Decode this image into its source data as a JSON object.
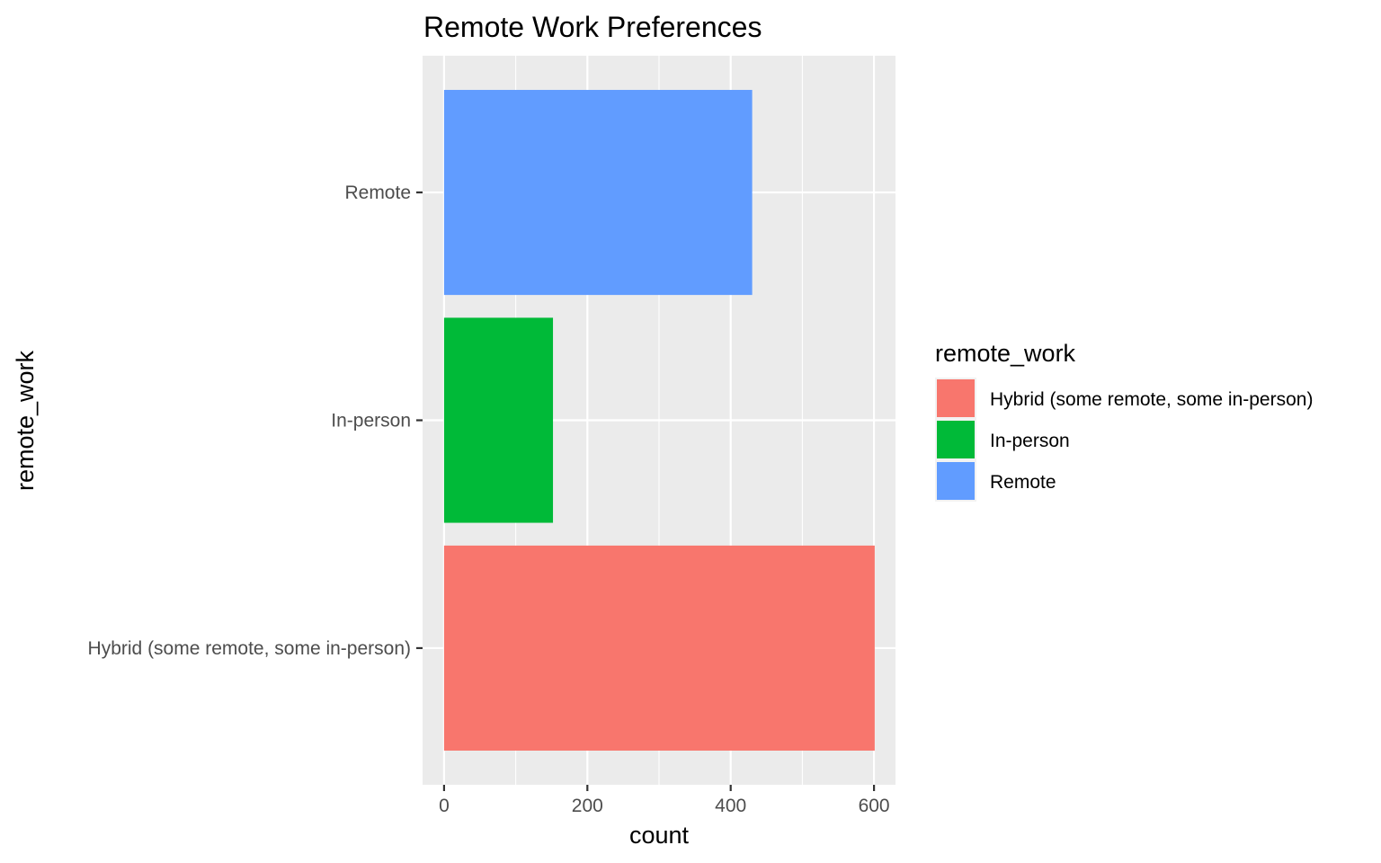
{
  "chart_data": {
    "type": "bar",
    "orientation": "horizontal",
    "title": "Remote Work Preferences",
    "xlabel": "count",
    "ylabel": "remote_work",
    "categories": [
      "Hybrid (some remote, some in-person)",
      "In-person",
      "Remote"
    ],
    "values": [
      601,
      152,
      430
    ],
    "colors": [
      "#F8766D",
      "#00BA38",
      "#619CFF"
    ],
    "xlim": [
      -30,
      630
    ],
    "x_ticks": [
      0,
      200,
      400,
      600
    ],
    "x_tick_labels": [
      "0",
      "200",
      "400",
      "600"
    ],
    "grid": true,
    "panel_background": "#EBEBEB",
    "grid_color": "#FFFFFF",
    "legend": {
      "title": "remote_work",
      "position": "right",
      "entries": [
        "Hybrid (some remote, some in-person)",
        "In-person",
        "Remote"
      ]
    }
  }
}
